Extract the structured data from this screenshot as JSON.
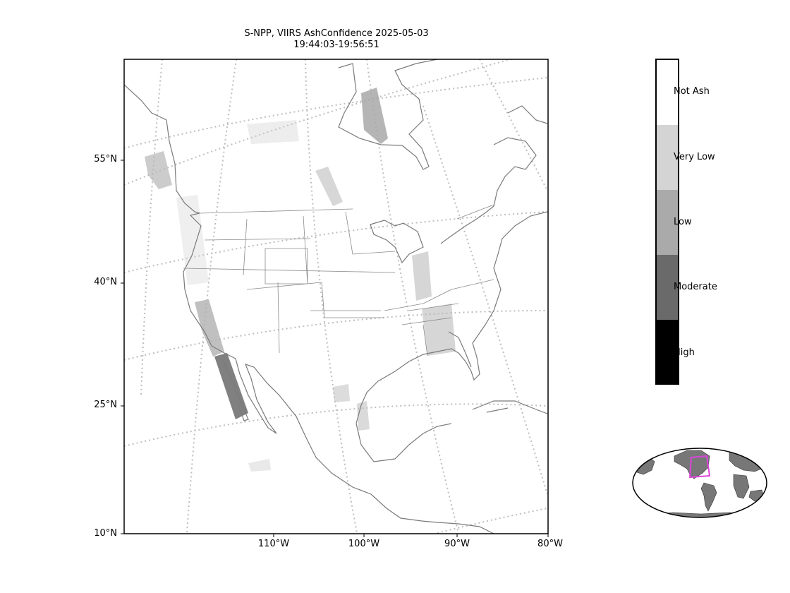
{
  "title": {
    "line1": "S-NPP, VIIRS AshConfidence 2025-05-03",
    "line2": "19:44:03-19:56:51"
  },
  "map": {
    "lat_labels": [
      "55°N",
      "40°N",
      "25°N",
      "10°N"
    ],
    "lon_labels": [
      "110°W",
      "100°W",
      "90°W",
      "80°W"
    ],
    "colors": {
      "coast": "#7a7a7a",
      "grid": "#bdbdbd",
      "ash_low": "#a8a8a8",
      "ash_moderate": "#6a6a6a"
    }
  },
  "colorbar": {
    "categories": [
      {
        "label": "Not Ash",
        "color": "#ffffff"
      },
      {
        "label": "Very Low",
        "color": "#d4d4d4"
      },
      {
        "label": "Low",
        "color": "#aaaaaa"
      },
      {
        "label": "Moderate",
        "color": "#6a6a6a"
      },
      {
        "label": "High",
        "color": "#000000"
      }
    ]
  },
  "inset": {
    "land_color": "#777777",
    "extent_color": "#dd44dd"
  }
}
